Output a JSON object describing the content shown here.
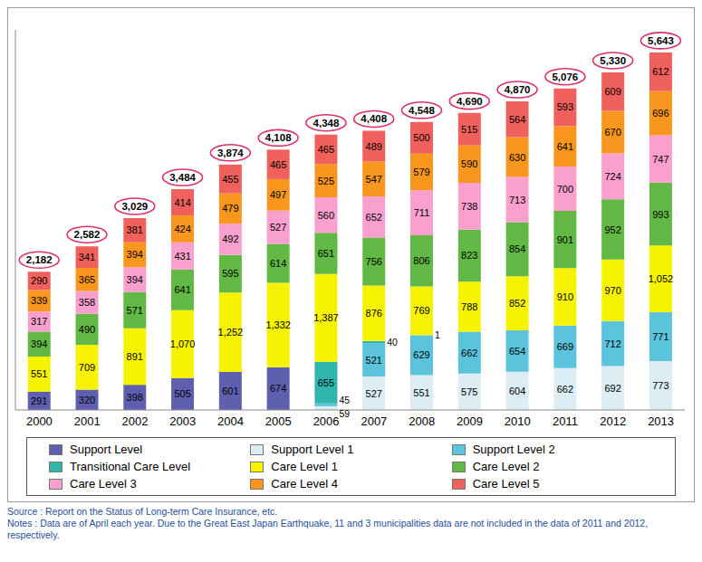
{
  "chart_data": {
    "type": "bar",
    "stacked": true,
    "data_labels": true,
    "legend": "bottom",
    "tick_labels": "x",
    "grid": false,
    "categories": [
      "2000",
      "2001",
      "2002",
      "2003",
      "2004",
      "2005",
      "2006",
      "2007",
      "2008",
      "2009",
      "2010",
      "2011",
      "2012",
      "2013"
    ],
    "ylim": [
      0,
      6000
    ],
    "yticks": [],
    "series": [
      {
        "name": "Support Level",
        "color": "#5f5fb0",
        "values": [
          291,
          320,
          398,
          505,
          601,
          674,
          null,
          null,
          null,
          null,
          null,
          null,
          null,
          null
        ]
      },
      {
        "name": "Support Level 1",
        "color": "#dcedf4",
        "values": [
          null,
          null,
          null,
          null,
          null,
          null,
          59,
          527,
          551,
          575,
          604,
          662,
          692,
          773
        ]
      },
      {
        "name": "Support Level 2",
        "color": "#5cc3dc",
        "values": [
          null,
          null,
          null,
          null,
          null,
          null,
          45,
          521,
          629,
          662,
          654,
          669,
          712,
          771
        ]
      },
      {
        "name": "Transitional Care Level",
        "color": "#2fb5ad",
        "values": [
          null,
          null,
          null,
          null,
          null,
          null,
          655,
          40,
          1,
          null,
          null,
          null,
          null,
          null
        ]
      },
      {
        "name": "Care Level 1",
        "color": "#f7f300",
        "values": [
          551,
          709,
          891,
          1070,
          1252,
          1332,
          1387,
          876,
          769,
          788,
          852,
          910,
          970,
          1052
        ],
        "value_labels": [
          "551",
          "709",
          "891",
          "1,070",
          "1,252",
          "1,332",
          "1,387",
          "876",
          "769",
          "788",
          "852",
          "910",
          "970",
          "1,052"
        ]
      },
      {
        "name": "Care Level 2",
        "color": "#62b845",
        "values": [
          394,
          490,
          571,
          641,
          595,
          614,
          651,
          756,
          806,
          823,
          854,
          901,
          952,
          993
        ]
      },
      {
        "name": "Care Level 3",
        "color": "#f9a0cf",
        "values": [
          317,
          358,
          394,
          431,
          492,
          527,
          560,
          652,
          711,
          738,
          713,
          700,
          724,
          747
        ]
      },
      {
        "name": "Care Level 4",
        "color": "#f8961e",
        "values": [
          339,
          365,
          394,
          424,
          479,
          497,
          525,
          547,
          579,
          590,
          630,
          641,
          670,
          696
        ]
      },
      {
        "name": "Care Level 5",
        "color": "#f0605c",
        "values": [
          290,
          341,
          381,
          414,
          455,
          465,
          465,
          489,
          500,
          515,
          564,
          593,
          609,
          612
        ]
      }
    ],
    "totals": [
      2182,
      2582,
      3029,
      3484,
      3874,
      4108,
      4348,
      4408,
      4548,
      4690,
      4870,
      5076,
      5330,
      5643
    ],
    "total_labels": [
      "2,182",
      "2,582",
      "3,029",
      "3,484",
      "3,874",
      "4,108",
      "4,348",
      "4,408",
      "4,548",
      "4,690",
      "4,870",
      "5,076",
      "5,330",
      "5,643"
    ],
    "source": "Source : Report on the Status of Long-term Care Insurance, etc.",
    "notes": "Notes : Data are of April each year. Due to the Great East Japan Earthquake, 11 and 3 municipalities data are not included in the data of 2011 and 2012, respectively."
  }
}
